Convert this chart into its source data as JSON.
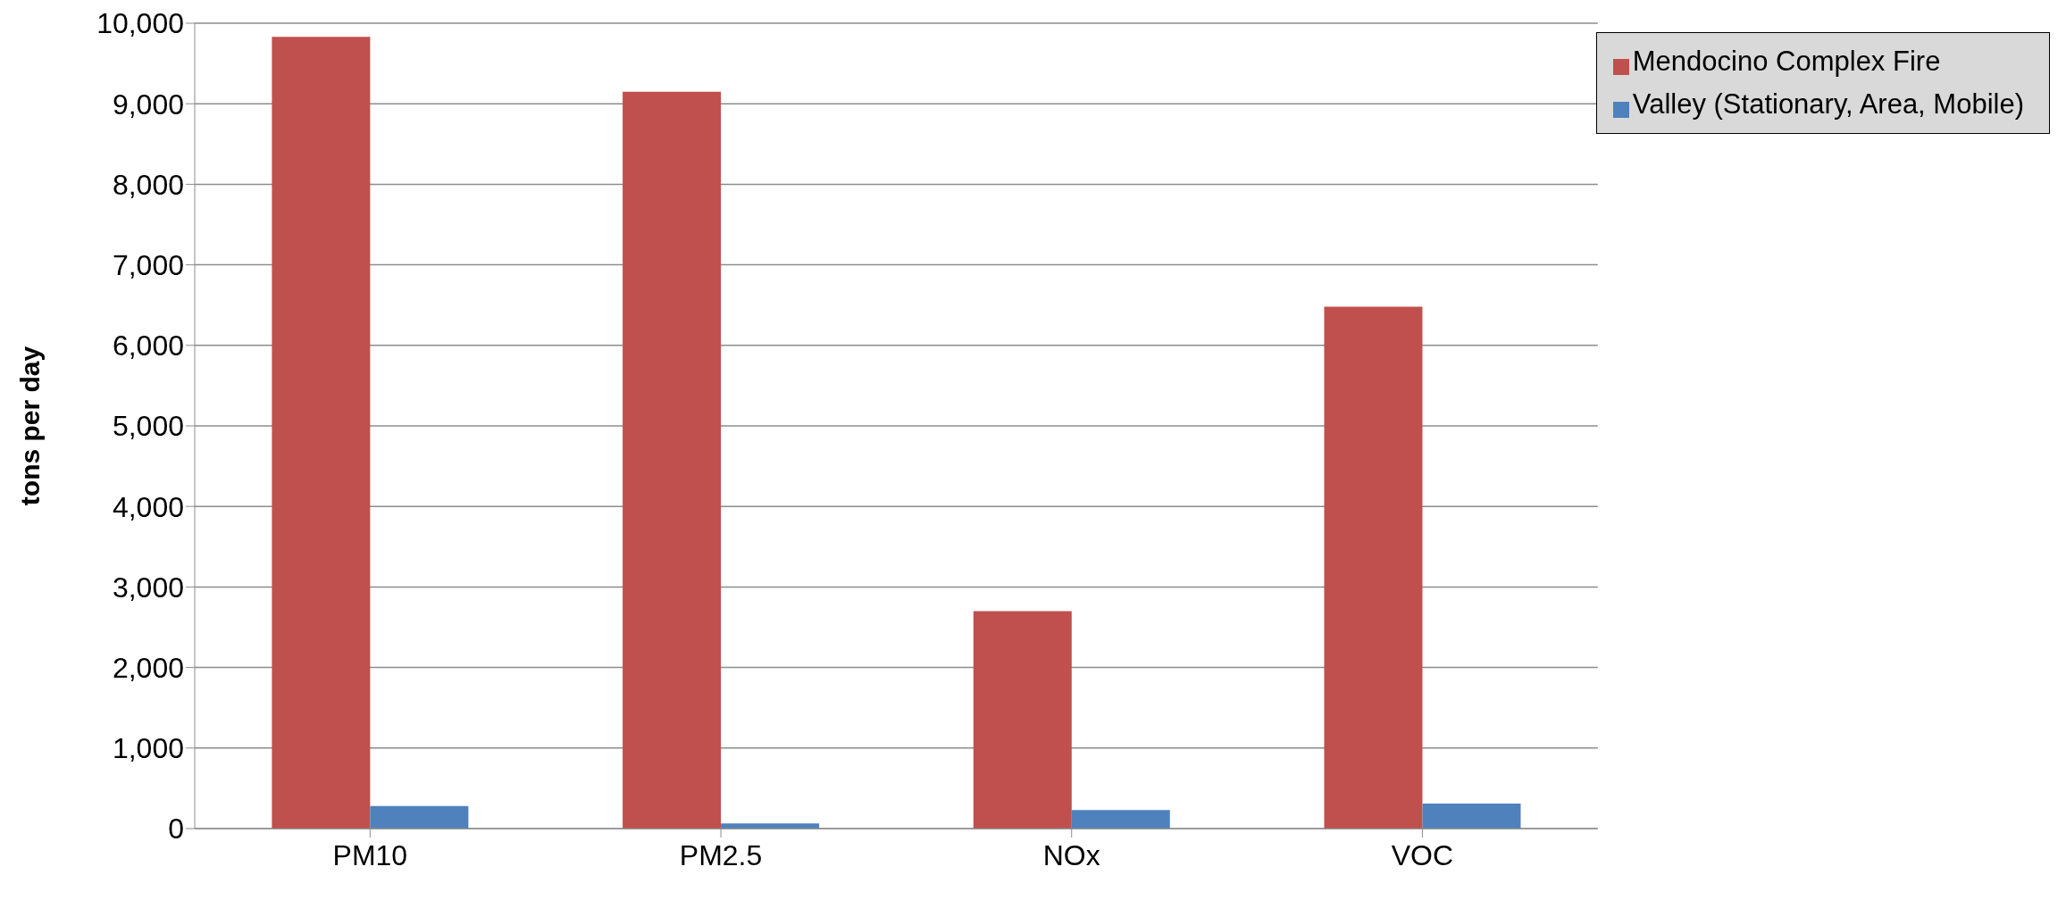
{
  "chart_data": {
    "type": "bar",
    "ylabel": "tons per day",
    "categories": [
      "PM10",
      "PM2.5",
      "NOx",
      "VOC"
    ],
    "series": [
      {
        "name": "Mendocino Complex Fire",
        "color": "#c0504d",
        "values": [
          9830,
          9150,
          2700,
          6480
        ]
      },
      {
        "name": "Valley (Stationary, Area, Mobile)",
        "color": "#4f81bd",
        "values": [
          280,
          65,
          230,
          310
        ]
      }
    ],
    "ylim": [
      0,
      10000
    ],
    "yticks": [
      {
        "value": 0,
        "label": "0"
      },
      {
        "value": 1000,
        "label": "1,000"
      },
      {
        "value": 2000,
        "label": "2,000"
      },
      {
        "value": 3000,
        "label": "3,000"
      },
      {
        "value": 4000,
        "label": "4,000"
      },
      {
        "value": 5000,
        "label": "5,000"
      },
      {
        "value": 6000,
        "label": "6,000"
      },
      {
        "value": 7000,
        "label": "7,000"
      },
      {
        "value": 8000,
        "label": "8,000"
      },
      {
        "value": 9000,
        "label": "9,000"
      },
      {
        "value": 10000,
        "label": "10,000"
      }
    ],
    "grid": "y",
    "legend": "top right"
  }
}
